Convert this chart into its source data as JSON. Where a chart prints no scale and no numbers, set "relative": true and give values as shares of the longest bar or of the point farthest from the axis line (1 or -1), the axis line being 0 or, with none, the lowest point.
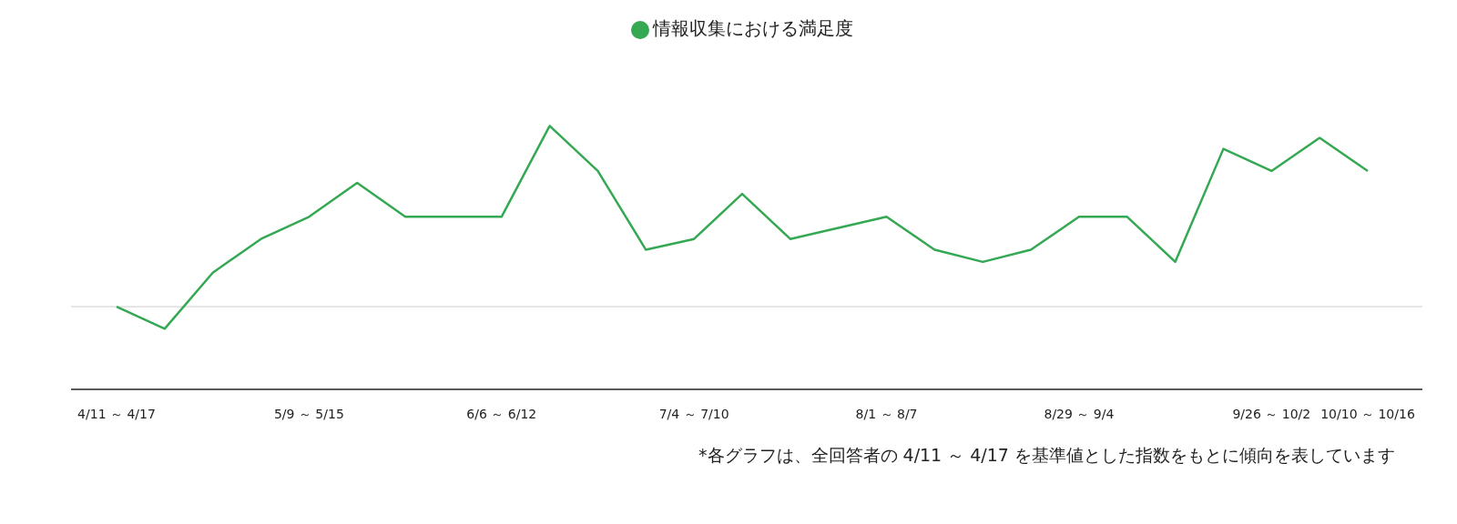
{
  "chart_data": {
    "type": "line",
    "relative": true,
    "categories": [
      "4/11 ～ 4/17",
      null,
      null,
      null,
      "5/9 ～ 5/15",
      null,
      null,
      null,
      "6/6 ～ 6/12",
      null,
      null,
      null,
      "7/4 ～ 7/10",
      null,
      null,
      null,
      "8/1 ～ 8/7",
      null,
      null,
      null,
      "8/29 ～ 9/4",
      null,
      null,
      null,
      "9/26 ～ 10/2",
      null,
      "10/10 ～ 10/16"
    ],
    "series": [
      {
        "name": "情報収集における満足度",
        "color": "#34a853",
        "values": [
          0.314,
          0.23,
          0.443,
          0.571,
          0.655,
          0.784,
          0.655,
          0.655,
          0.655,
          1,
          0.829,
          0.53,
          0.571,
          0.742,
          0.571,
          0.613,
          0.655,
          0.53,
          0.484,
          0.53,
          0.655,
          0.655,
          0.484,
          0.913,
          0.829,
          0.955,
          0.829
        ]
      }
    ],
    "ref_lines": [
      {
        "axis": "y",
        "value": 0.314,
        "color": "#cccccc"
      }
    ],
    "legend": "top",
    "marker": "none",
    "annotations": [
      "*各グラフは、全回答者の 4/11 ～ 4/17 を基準値とした指数をもとに傾向を表しています"
    ]
  }
}
